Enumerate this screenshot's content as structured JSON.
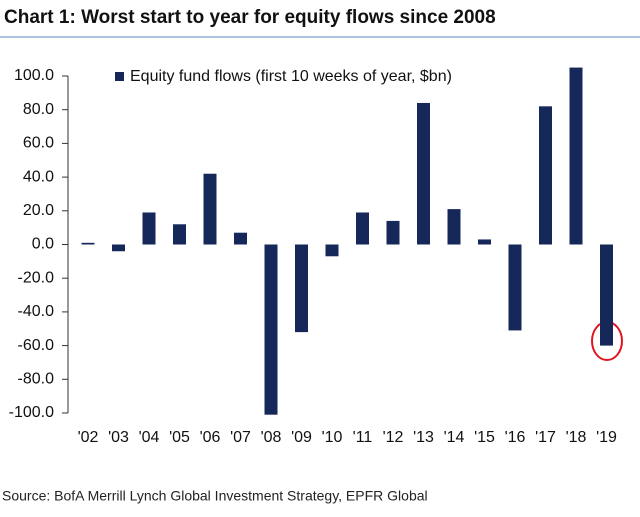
{
  "chart_data": {
    "type": "bar",
    "title": "Chart 1: Worst start to year for equity flows since 2008",
    "source": "Source: BofA Merrill Lynch Global Investment Strategy, EPFR Global",
    "categories": [
      "'02",
      "'03",
      "'04",
      "'05",
      "'06",
      "'07",
      "'08",
      "'09",
      "'10",
      "'11",
      "'12",
      "'13",
      "'14",
      "'15",
      "'16",
      "'17",
      "'18",
      "'19"
    ],
    "series": [
      {
        "name": "Equity fund flows (first 10 weeks of year, $bn)",
        "color": "#16275a",
        "values": [
          1,
          -4,
          19,
          12,
          42,
          7,
          -101,
          -52,
          -7,
          19,
          14,
          84,
          21,
          3,
          -51,
          82,
          105,
          -60
        ]
      }
    ],
    "ylim": [
      -100,
      100
    ],
    "yticks": [
      {
        "value": -100,
        "label": "-100.0"
      },
      {
        "value": -80,
        "label": "-80.0"
      },
      {
        "value": -60,
        "label": "-60.0"
      },
      {
        "value": -40,
        "label": "-40.0"
      },
      {
        "value": -20,
        "label": "-20.0"
      },
      {
        "value": 0,
        "label": "0.0"
      },
      {
        "value": 20,
        "label": "20.0"
      },
      {
        "value": 40,
        "label": "40.0"
      },
      {
        "value": 60,
        "label": "60.0"
      },
      {
        "value": 80,
        "label": "80.0"
      },
      {
        "value": 100,
        "label": "100.0"
      }
    ]
  }
}
